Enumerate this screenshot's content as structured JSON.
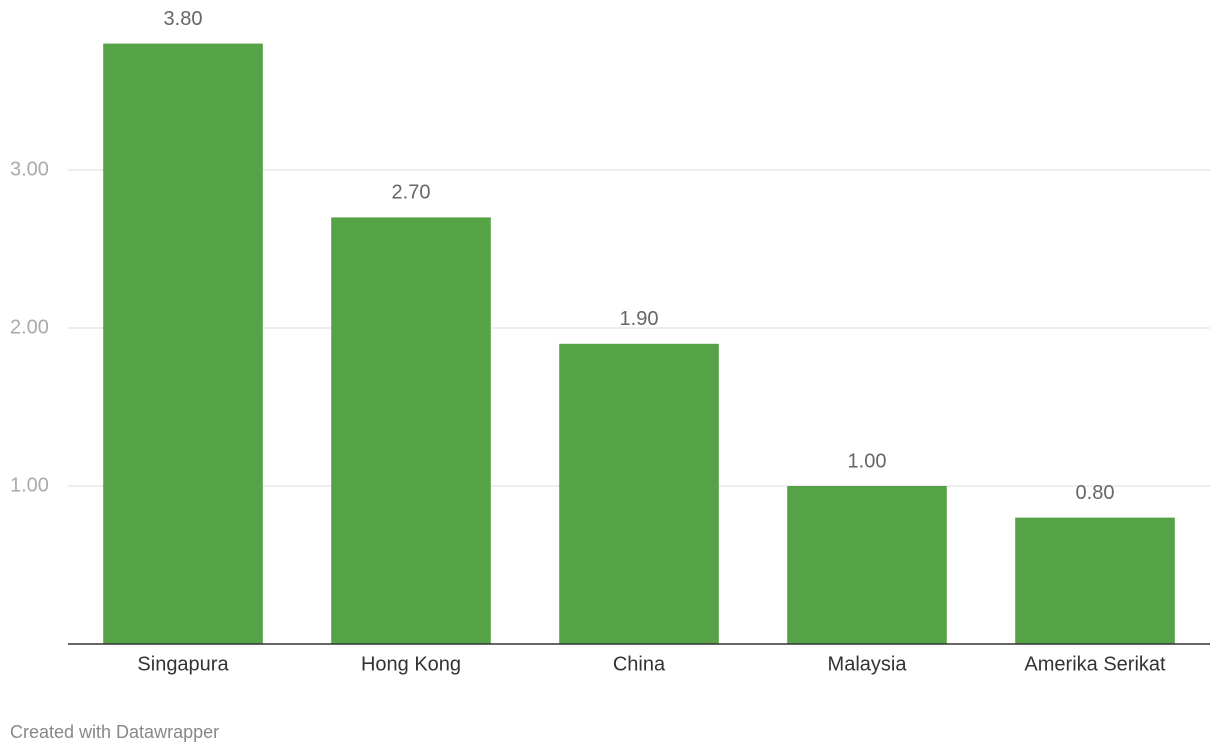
{
  "chart_data": {
    "type": "bar",
    "categories": [
      "Singapura",
      "Hong Kong",
      "China",
      "Malaysia",
      "Amerika Serikat"
    ],
    "values": [
      3.8,
      2.7,
      1.9,
      1.0,
      0.8
    ],
    "value_labels": [
      "3.80",
      "2.70",
      "1.90",
      "1.00",
      "0.80"
    ],
    "color": "#56a246",
    "ylim": [
      0,
      4
    ],
    "yticks": [
      {
        "value": 1,
        "label": "1.00"
      },
      {
        "value": 2,
        "label": "2.00"
      },
      {
        "value": 3,
        "label": "3.00"
      }
    ],
    "grid": true,
    "credit": "Created with Datawrapper"
  }
}
